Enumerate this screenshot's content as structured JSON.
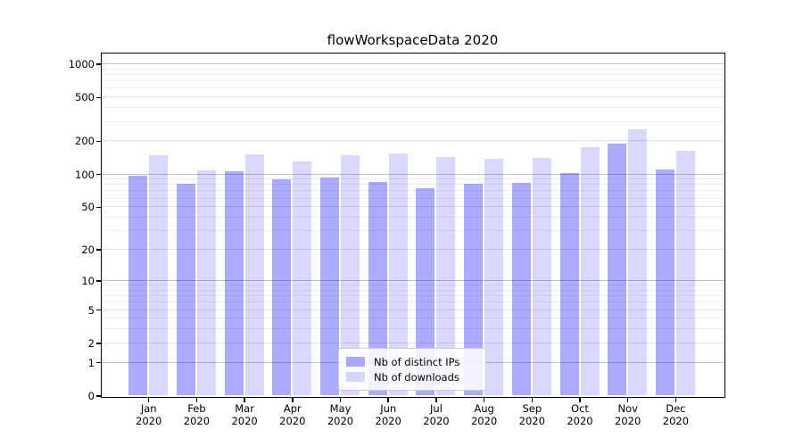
{
  "title": "flowWorkspaceData 2020",
  "y_axis": {
    "tick_labels": [
      "0",
      "1",
      "2",
      "5",
      "10",
      "20",
      "50",
      "100",
      "200",
      "500",
      "1000"
    ]
  },
  "x_axis": {
    "year": "2020",
    "months": [
      "Jan",
      "Feb",
      "Mar",
      "Apr",
      "May",
      "Jun",
      "Jul",
      "Aug",
      "Sep",
      "Oct",
      "Nov",
      "Dec"
    ]
  },
  "legend": {
    "items": [
      "Nb of distinct IPs",
      "Nb of downloads"
    ]
  },
  "colors": {
    "bar_distinct_ips": "#aaaaff",
    "bar_downloads": "#d9d9ff",
    "grid_major": "#c4c4c4",
    "grid_minor": "#eeeeee",
    "axis": "#000000"
  },
  "chart_data": {
    "type": "bar",
    "title": "flowWorkspaceData 2020",
    "categories": [
      "Jan 2020",
      "Feb 2020",
      "Mar 2020",
      "Apr 2020",
      "May 2020",
      "Jun 2020",
      "Jul 2020",
      "Aug 2020",
      "Sep 2020",
      "Oct 2020",
      "Nov 2020",
      "Dec 2020"
    ],
    "series": [
      {
        "name": "Nb of distinct IPs",
        "color": "#aaaaff",
        "values": [
          96,
          82,
          106,
          89,
          92,
          85,
          74,
          82,
          83,
          102,
          188,
          110
        ]
      },
      {
        "name": "Nb of downloads",
        "color": "#d9d9ff",
        "values": [
          148,
          108,
          151,
          131,
          148,
          155,
          142,
          138,
          141,
          177,
          256,
          164
        ]
      }
    ],
    "y_scale": "symlog(log1p)",
    "y_ticks": [
      0,
      1,
      2,
      5,
      10,
      20,
      50,
      100,
      200,
      500,
      1000
    ],
    "ylim": [
      0,
      1250
    ],
    "grid": "horizontal, minor lines at 2-9 per decade",
    "legend_position": "inside lower center"
  }
}
